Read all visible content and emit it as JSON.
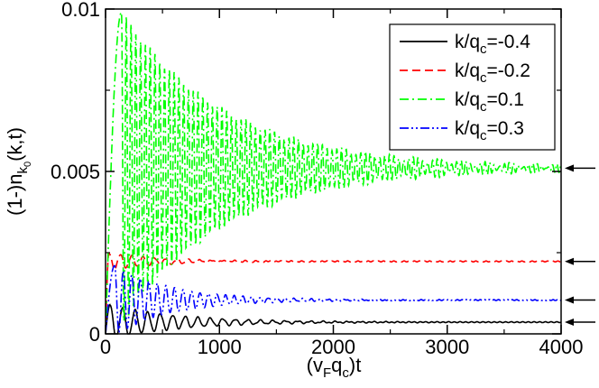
{
  "chart_data": {
    "type": "line",
    "title": "",
    "xlabel": {
      "pre": "(v",
      "sub1": "F",
      "mid": "q",
      "sub2": "c",
      "post": ")t"
    },
    "ylabel": {
      "pre": "(1-)n",
      "sub1": "k",
      "sub2": "0",
      "post": "(k,t)"
    },
    "xlim": [
      0,
      4000
    ],
    "ylim": [
      0,
      0.01
    ],
    "x_ticks": [
      0,
      1000,
      2000,
      3000,
      4000
    ],
    "x_tick_labels": [
      "0",
      "1000",
      "2000",
      "3000",
      "4000"
    ],
    "y_ticks": [
      0,
      0.005,
      0.01
    ],
    "y_tick_labels": [
      "0",
      "0.005",
      "0.01"
    ],
    "legend_position": "top-right",
    "series": [
      {
        "name": "k/q_c=-0.4",
        "label_pre": "k/q",
        "label_sub": "c",
        "label_post": "=-0.4",
        "color": "#000000",
        "style": "solid",
        "asymptote": 0.00036,
        "initial_peak": 0.0009,
        "period": 110,
        "decay": 600,
        "noise": 2e-05,
        "noise_period": 50,
        "peak_time": 40
      },
      {
        "name": "k/q_c=-0.2",
        "label_pre": "k/q",
        "label_sub": "c",
        "label_post": "=-0.2",
        "color": "#ff0000",
        "style": "dashed",
        "asymptote": 0.00223,
        "initial_peak": 0.0025,
        "period": 100,
        "decay": 450,
        "noise": 2e-05,
        "noise_period": 45,
        "peak_time": 30
      },
      {
        "name": "k/q_c=0.1",
        "label_pre": "k/q",
        "label_sub": "c",
        "label_post": "=0.1",
        "color": "#00ff00",
        "style": "dashdot",
        "asymptote": 0.0051,
        "initial_peak": 0.0099,
        "period": 42,
        "decay": 900,
        "noise": 0.0001,
        "noise_period": 35,
        "peak_time": 140
      },
      {
        "name": "k/q_c=0.3",
        "label_pre": "k/q",
        "label_sub": "c",
        "label_post": "=0.3",
        "color": "#0000ff",
        "style": "dashdotdot",
        "asymptote": 0.00104,
        "initial_peak": 0.0021,
        "period": 75,
        "decay": 500,
        "noise": 2e-05,
        "noise_period": 40,
        "peak_time": 80
      }
    ],
    "annotations": [
      {
        "type": "arrow",
        "points_to": 0.0051,
        "direction": "left"
      },
      {
        "type": "arrow",
        "points_to": 0.00223,
        "direction": "left"
      },
      {
        "type": "arrow",
        "points_to": 0.00104,
        "direction": "left"
      },
      {
        "type": "arrow",
        "points_to": 0.00036,
        "direction": "left"
      }
    ]
  }
}
